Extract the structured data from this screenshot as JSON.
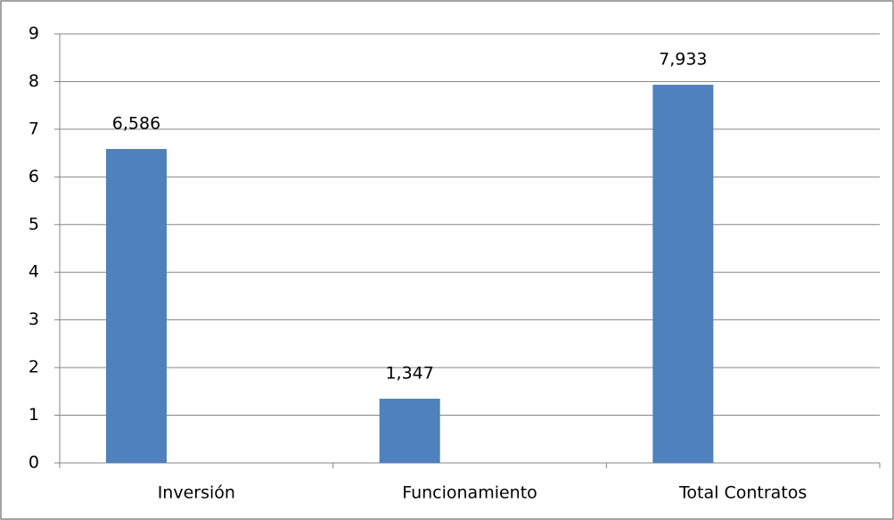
{
  "chart_data": {
    "type": "bar",
    "categories": [
      "Inversión",
      "Funcionamiento",
      "Total Contratos"
    ],
    "values": [
      6.586,
      1.347,
      7.933
    ],
    "value_labels": [
      "6,586",
      "1,347",
      "7,933"
    ],
    "color": "#4f81bd",
    "ylim": [
      0,
      9
    ],
    "yticks": [
      0,
      1,
      2,
      3,
      4,
      5,
      6,
      7,
      8,
      9
    ],
    "grid": true
  }
}
